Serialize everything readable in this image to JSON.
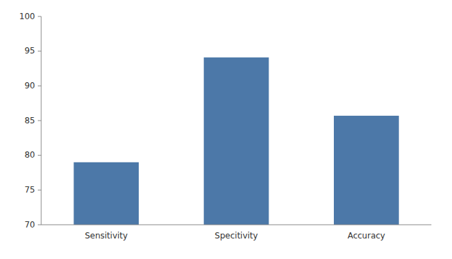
{
  "chart_data": {
    "type": "bar",
    "categories": [
      "Sensitivity",
      "Specitivity",
      "Accuracy"
    ],
    "values": [
      79.0,
      94.1,
      85.7
    ],
    "ylim": [
      70,
      100
    ],
    "yticks": [
      70,
      75,
      80,
      85,
      90,
      95,
      100
    ],
    "grid": false
  }
}
